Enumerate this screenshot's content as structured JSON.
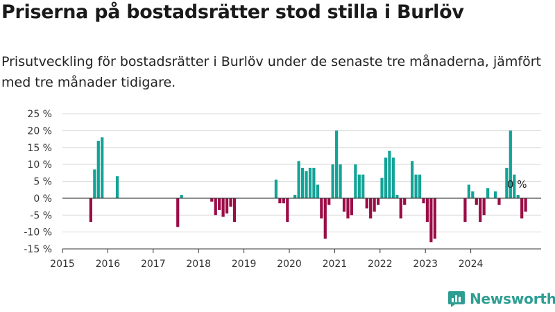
{
  "header": {
    "title": "Priserna på bostadsrätter stod stilla i Burlöv",
    "subtitle": "Prisutveckling för bostadsrätter i Burlöv under de senaste tre månaderna, jämfört med tre månader tidigare."
  },
  "brand": {
    "name": "Newsworthy"
  },
  "colors": {
    "positive": "#13a397",
    "negative": "#9b0c47",
    "grid": "#d9d9d9",
    "axis": "#333333",
    "brand": "#2e9e92"
  },
  "chart_data": {
    "type": "bar",
    "start_month": "2015-01",
    "x_ticks": [
      "2015",
      "2016",
      "2017",
      "2018",
      "2019",
      "2020",
      "2021",
      "2022",
      "2023",
      "2024"
    ],
    "y_ticks": [
      "25 %",
      "20 %",
      "15 %",
      "10 %",
      "5 %",
      "0 %",
      "-5 %",
      "-10 %",
      "-15 %"
    ],
    "ylim": [
      -15,
      25
    ],
    "grid": true,
    "annotation": {
      "label": "0 %",
      "month": "2024-09",
      "value": 0
    },
    "values": [
      null,
      null,
      null,
      null,
      null,
      null,
      null,
      -7,
      8.5,
      17,
      18,
      null,
      null,
      null,
      6.5,
      null,
      null,
      null,
      null,
      null,
      null,
      null,
      null,
      null,
      null,
      null,
      null,
      null,
      null,
      null,
      -8.5,
      1,
      null,
      null,
      null,
      null,
      null,
      null,
      null,
      -1,
      -5,
      -3.5,
      -5.5,
      -4.5,
      -2.5,
      -7,
      null,
      null,
      null,
      null,
      null,
      null,
      null,
      null,
      null,
      null,
      5.5,
      -1.5,
      -1.5,
      -7,
      null,
      1,
      11,
      9,
      8,
      9,
      9,
      4,
      -6,
      -12,
      -2,
      10,
      20,
      10,
      -4,
      -6,
      -5,
      10,
      7,
      7,
      -3,
      -6,
      -4,
      -2,
      6,
      12,
      14,
      12,
      1,
      -6,
      -2,
      null,
      11,
      7,
      7,
      -1.5,
      -7,
      -13,
      -12,
      null,
      null,
      null,
      null,
      null,
      null,
      null,
      -7,
      4,
      2,
      -2,
      -7,
      -5,
      3,
      null,
      2,
      -2,
      null,
      9,
      20,
      7,
      1,
      -6,
      -4
    ]
  }
}
